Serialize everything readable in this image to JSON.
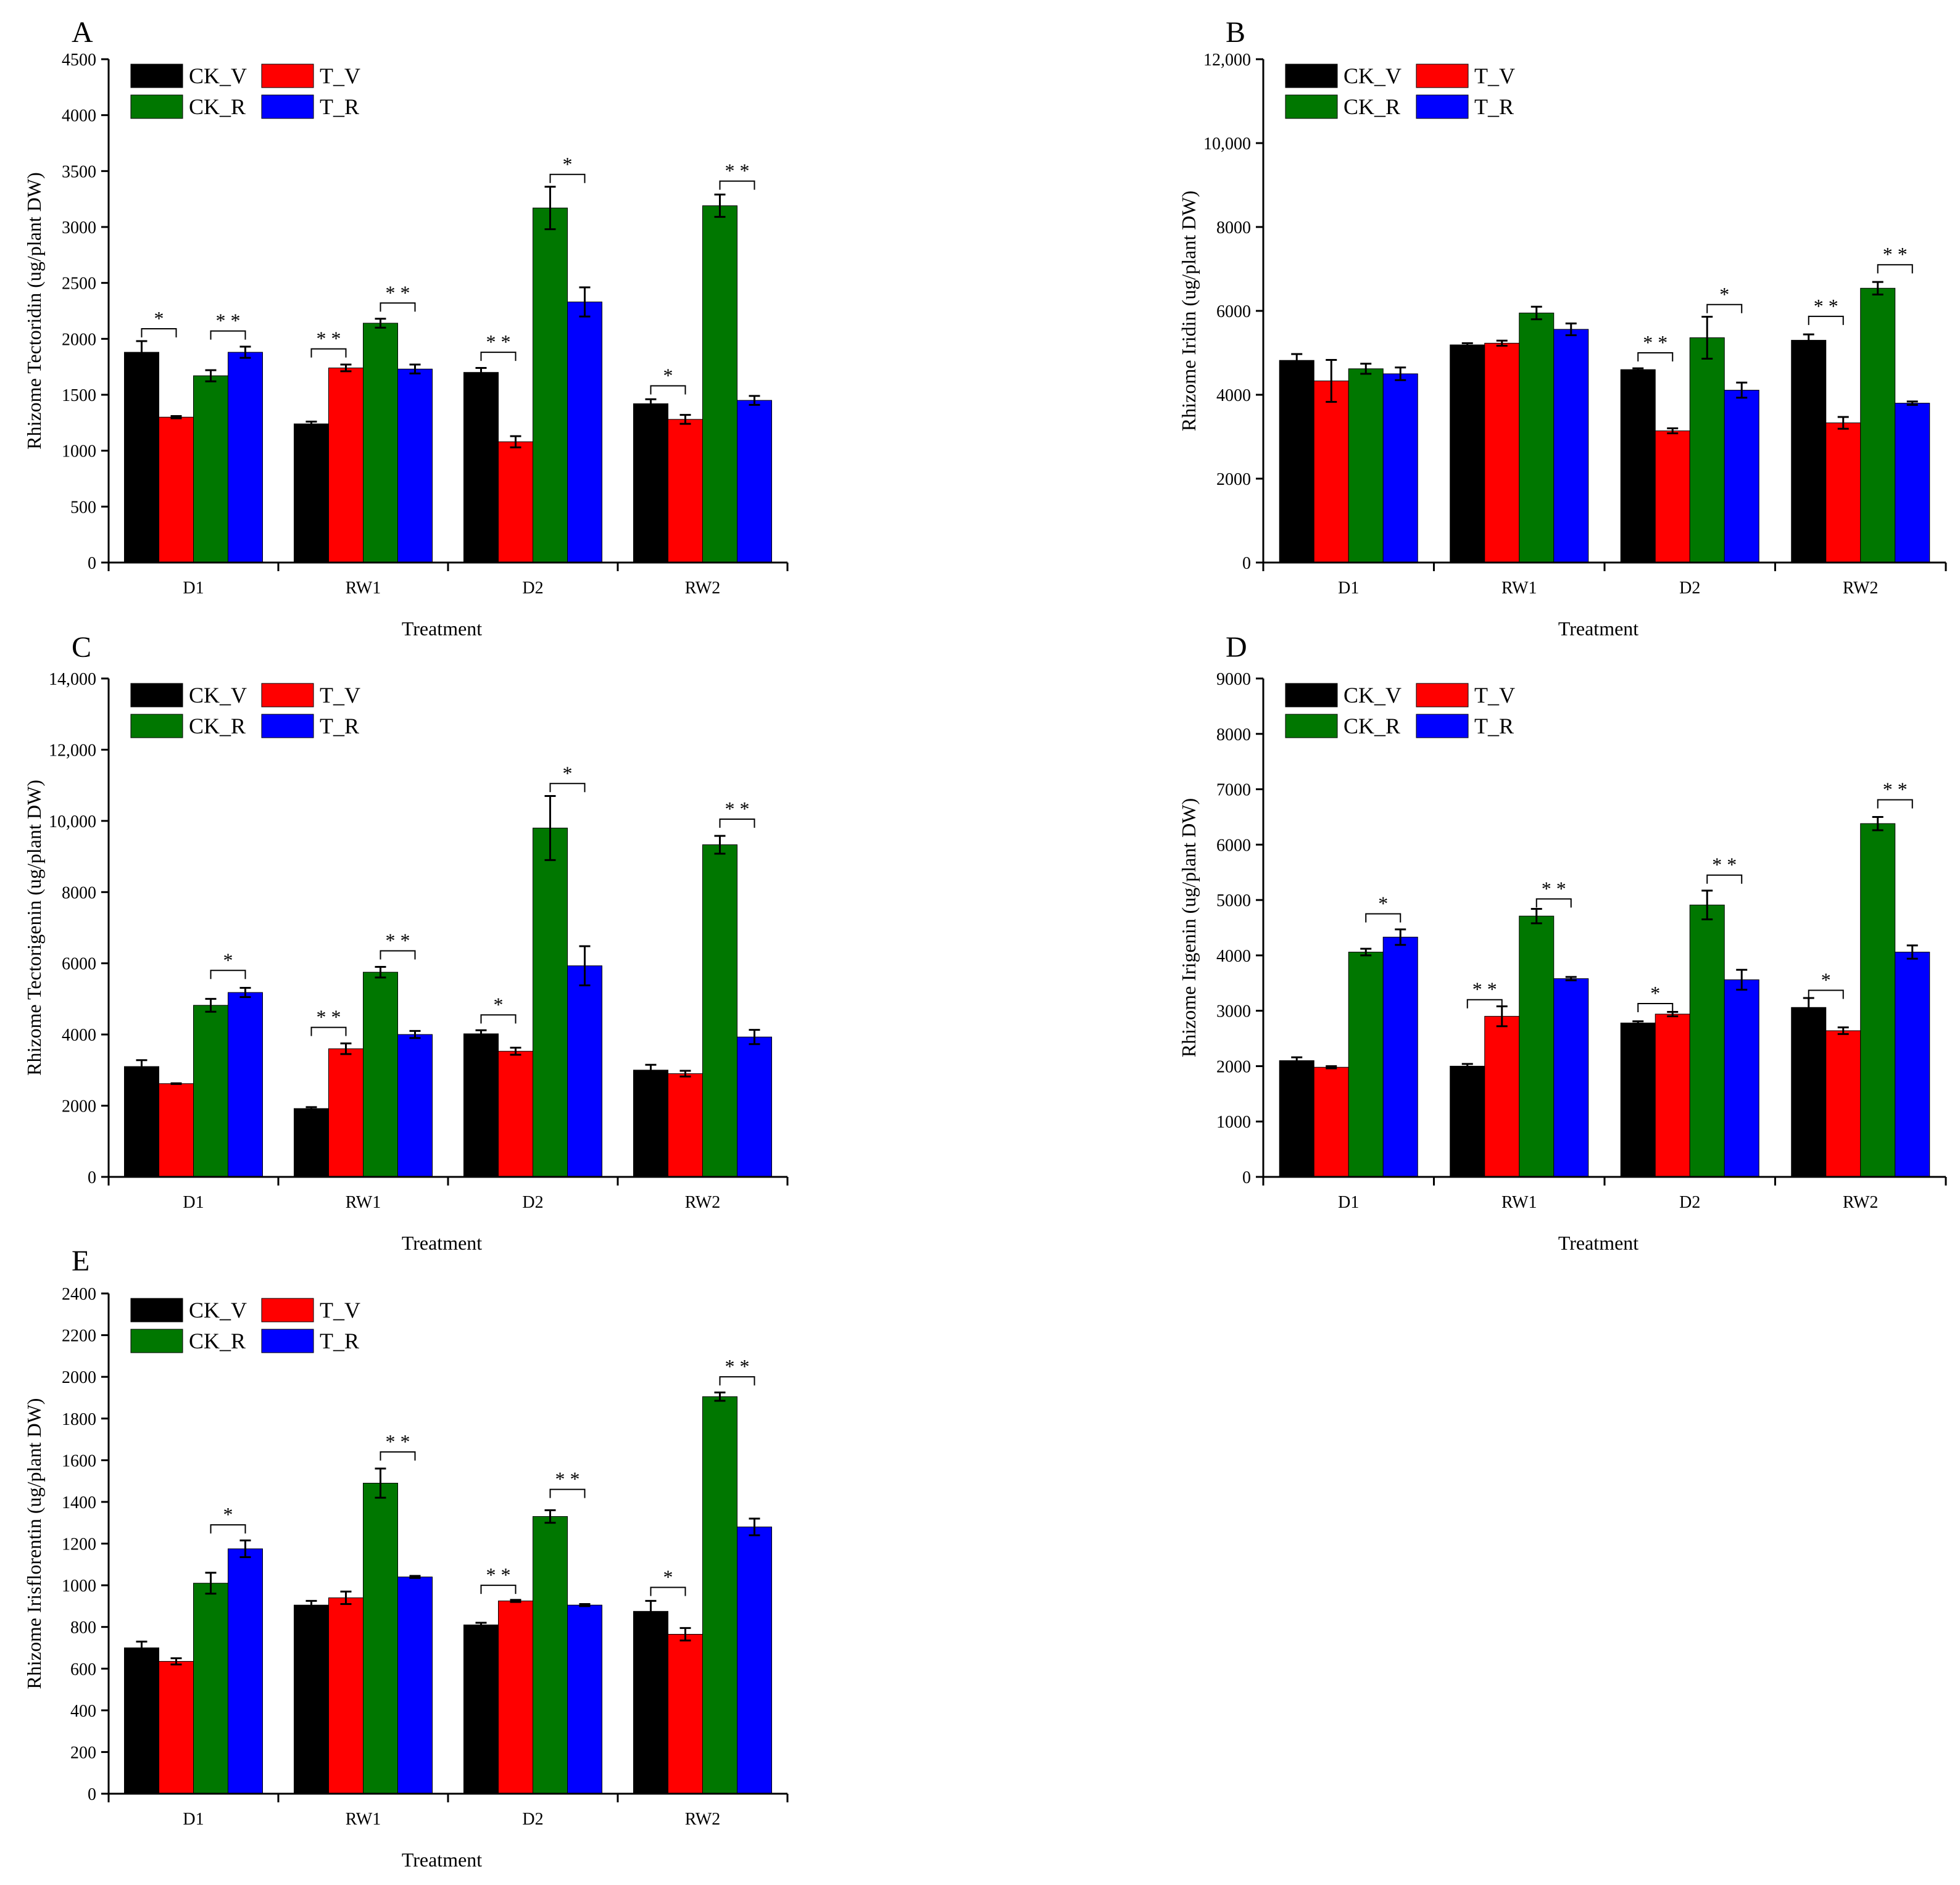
{
  "series_names": [
    "CK_V",
    "T_V",
    "CK_R",
    "T_R"
  ],
  "series_colors": [
    "#000000",
    "#ff0000",
    "#007700",
    "#0000ff"
  ],
  "chart_data": [
    {
      "panel": "A",
      "type": "bar",
      "ylabel": "Rhizome Tectoridin (ug/plant DW)",
      "xlabel": "Treatment",
      "categories": [
        "D1",
        "RW1",
        "D2",
        "RW2"
      ],
      "ylim": [
        0,
        4500
      ],
      "yticks": [
        0,
        500,
        1000,
        1500,
        2000,
        2500,
        3000,
        3500,
        4000,
        4500
      ],
      "ytick_labels": [
        "0",
        "500",
        "1000",
        "1500",
        "2000",
        "2500",
        "3000",
        "3500",
        "4000",
        "4500"
      ],
      "series": [
        {
          "name": "CK_V",
          "values": [
            1880,
            1240,
            1700,
            1420
          ],
          "errors": [
            100,
            20,
            40,
            40
          ]
        },
        {
          "name": "T_V",
          "values": [
            1300,
            1740,
            1080,
            1280
          ],
          "errors": [
            10,
            30,
            50,
            40
          ]
        },
        {
          "name": "CK_R",
          "values": [
            1670,
            2140,
            3170,
            3190
          ],
          "errors": [
            50,
            40,
            190,
            100
          ]
        },
        {
          "name": "T_R",
          "values": [
            1880,
            1730,
            2330,
            1450
          ],
          "errors": [
            50,
            40,
            130,
            40
          ]
        }
      ],
      "significance": [
        {
          "category": 0,
          "pair": [
            0,
            1
          ],
          "label": "*",
          "y": 2090
        },
        {
          "category": 0,
          "pair": [
            2,
            3
          ],
          "label": "* *",
          "y": 2070
        },
        {
          "category": 1,
          "pair": [
            0,
            1
          ],
          "label": "* *",
          "y": 1910
        },
        {
          "category": 1,
          "pair": [
            2,
            3
          ],
          "label": "* *",
          "y": 2320
        },
        {
          "category": 2,
          "pair": [
            0,
            1
          ],
          "label": "* *",
          "y": 1880
        },
        {
          "category": 2,
          "pair": [
            2,
            3
          ],
          "label": "*",
          "y": 3470
        },
        {
          "category": 3,
          "pair": [
            0,
            1
          ],
          "label": "*",
          "y": 1580
        },
        {
          "category": 3,
          "pair": [
            2,
            3
          ],
          "label": "* *",
          "y": 3410
        }
      ]
    },
    {
      "panel": "B",
      "type": "bar",
      "ylabel": "Rhizome Iridin (ug/plant DW)",
      "xlabel": "Treatment",
      "categories": [
        "D1",
        "RW1",
        "D2",
        "RW2"
      ],
      "ylim": [
        0,
        12000
      ],
      "yticks": [
        0,
        2000,
        4000,
        6000,
        8000,
        10000,
        12000
      ],
      "ytick_labels": [
        "0",
        "2000",
        "4000",
        "6000",
        "8000",
        "10,000",
        "12,000"
      ],
      "series": [
        {
          "name": "CK_V",
          "values": [
            4820,
            5190,
            4600,
            5300
          ],
          "errors": [
            150,
            40,
            30,
            140
          ]
        },
        {
          "name": "T_V",
          "values": [
            4330,
            5230,
            3140,
            3330
          ],
          "errors": [
            500,
            60,
            60,
            140
          ]
        },
        {
          "name": "CK_R",
          "values": [
            4620,
            5950,
            5360,
            6540
          ],
          "errors": [
            120,
            150,
            500,
            150
          ]
        },
        {
          "name": "T_R",
          "values": [
            4500,
            5560,
            4110,
            3800
          ],
          "errors": [
            150,
            140,
            180,
            40
          ]
        }
      ],
      "significance": [
        {
          "category": 2,
          "pair": [
            0,
            1
          ],
          "label": "* *",
          "y": 5000
        },
        {
          "category": 2,
          "pair": [
            2,
            3
          ],
          "label": "*",
          "y": 6150
        },
        {
          "category": 3,
          "pair": [
            0,
            1
          ],
          "label": "* *",
          "y": 5870
        },
        {
          "category": 3,
          "pair": [
            2,
            3
          ],
          "label": "* *",
          "y": 7100
        }
      ]
    },
    {
      "panel": "C",
      "type": "bar",
      "ylabel": "Rhizome Tectorigenin (ug/plant DW)",
      "xlabel": "Treatment",
      "categories": [
        "D1",
        "RW1",
        "D2",
        "RW2"
      ],
      "ylim": [
        0,
        14000
      ],
      "yticks": [
        0,
        2000,
        4000,
        6000,
        8000,
        10000,
        12000,
        14000
      ],
      "ytick_labels": [
        "0",
        "2000",
        "4000",
        "6000",
        "8000",
        "10,000",
        "12,000",
        "14,000"
      ],
      "series": [
        {
          "name": "CK_V",
          "values": [
            3100,
            1920,
            4020,
            3000
          ],
          "errors": [
            180,
            40,
            100,
            150
          ]
        },
        {
          "name": "T_V",
          "values": [
            2620,
            3600,
            3530,
            2900
          ],
          "errors": [
            10,
            150,
            100,
            80
          ]
        },
        {
          "name": "CK_R",
          "values": [
            4820,
            5750,
            9800,
            9330
          ],
          "errors": [
            180,
            150,
            900,
            250
          ]
        },
        {
          "name": "T_R",
          "values": [
            5180,
            4000,
            5930,
            3930
          ],
          "errors": [
            130,
            100,
            550,
            200
          ]
        }
      ],
      "significance": [
        {
          "category": 0,
          "pair": [
            2,
            3
          ],
          "label": "*",
          "y": 5800
        },
        {
          "category": 1,
          "pair": [
            0,
            1
          ],
          "label": "* *",
          "y": 4200
        },
        {
          "category": 1,
          "pair": [
            2,
            3
          ],
          "label": "* *",
          "y": 6350
        },
        {
          "category": 2,
          "pair": [
            0,
            1
          ],
          "label": "*",
          "y": 4550
        },
        {
          "category": 2,
          "pair": [
            2,
            3
          ],
          "label": "*",
          "y": 11050
        },
        {
          "category": 3,
          "pair": [
            2,
            3
          ],
          "label": "* *",
          "y": 10050
        }
      ]
    },
    {
      "panel": "D",
      "type": "bar",
      "ylabel": "Rhizome Irigenin (ug/plant DW)",
      "xlabel": "Treatment",
      "categories": [
        "D1",
        "RW1",
        "D2",
        "RW2"
      ],
      "ylim": [
        0,
        9000
      ],
      "yticks": [
        0,
        1000,
        2000,
        3000,
        4000,
        5000,
        6000,
        7000,
        8000,
        9000
      ],
      "ytick_labels": [
        "0",
        "1000",
        "2000",
        "3000",
        "4000",
        "5000",
        "6000",
        "7000",
        "8000",
        "9000"
      ],
      "series": [
        {
          "name": "CK_V",
          "values": [
            2100,
            2000,
            2780,
            3060
          ],
          "errors": [
            60,
            40,
            30,
            170
          ]
        },
        {
          "name": "T_V",
          "values": [
            1980,
            2900,
            2940,
            2640
          ],
          "errors": [
            20,
            180,
            40,
            60
          ]
        },
        {
          "name": "CK_R",
          "values": [
            4060,
            4710,
            4910,
            6380
          ],
          "errors": [
            60,
            130,
            260,
            120
          ]
        },
        {
          "name": "T_R",
          "values": [
            4330,
            3580,
            3560,
            4060
          ],
          "errors": [
            140,
            30,
            180,
            120
          ]
        }
      ],
      "significance": [
        {
          "category": 0,
          "pair": [
            2,
            3
          ],
          "label": "*",
          "y": 4750
        },
        {
          "category": 1,
          "pair": [
            0,
            1
          ],
          "label": "* *",
          "y": 3200
        },
        {
          "category": 1,
          "pair": [
            2,
            3
          ],
          "label": "* *",
          "y": 5020
        },
        {
          "category": 2,
          "pair": [
            0,
            1
          ],
          "label": "*",
          "y": 3130
        },
        {
          "category": 2,
          "pair": [
            2,
            3
          ],
          "label": "* *",
          "y": 5450
        },
        {
          "category": 3,
          "pair": [
            0,
            1
          ],
          "label": "*",
          "y": 3370
        },
        {
          "category": 3,
          "pair": [
            2,
            3
          ],
          "label": "* *",
          "y": 6810
        }
      ]
    },
    {
      "panel": "E",
      "type": "bar",
      "ylabel": "Rhizome Irisflorentin (ug/plant DW)",
      "xlabel": "Treatment",
      "categories": [
        "D1",
        "RW1",
        "D2",
        "RW2"
      ],
      "ylim": [
        0,
        2400
      ],
      "yticks": [
        0,
        200,
        400,
        600,
        800,
        1000,
        1200,
        1400,
        1600,
        1800,
        2000,
        2200,
        2400
      ],
      "ytick_labels": [
        "0",
        "200",
        "400",
        "600",
        "800",
        "1000",
        "1200",
        "1400",
        "1600",
        "1800",
        "2000",
        "2200",
        "2400"
      ],
      "series": [
        {
          "name": "CK_V",
          "values": [
            700,
            905,
            810,
            875
          ],
          "errors": [
            30,
            20,
            10,
            50
          ]
        },
        {
          "name": "T_V",
          "values": [
            635,
            940,
            925,
            765
          ],
          "errors": [
            15,
            30,
            5,
            30
          ]
        },
        {
          "name": "CK_R",
          "values": [
            1010,
            1490,
            1330,
            1905
          ],
          "errors": [
            50,
            70,
            30,
            20
          ]
        },
        {
          "name": "T_R",
          "values": [
            1175,
            1040,
            905,
            1280
          ],
          "errors": [
            40,
            5,
            5,
            40
          ]
        }
      ],
      "significance": [
        {
          "category": 0,
          "pair": [
            2,
            3
          ],
          "label": "*",
          "y": 1290
        },
        {
          "category": 1,
          "pair": [
            2,
            3
          ],
          "label": "* *",
          "y": 1640
        },
        {
          "category": 2,
          "pair": [
            0,
            1
          ],
          "label": "* *",
          "y": 1000
        },
        {
          "category": 2,
          "pair": [
            2,
            3
          ],
          "label": "* *",
          "y": 1460
        },
        {
          "category": 3,
          "pair": [
            0,
            1
          ],
          "label": "*",
          "y": 990
        },
        {
          "category": 3,
          "pair": [
            2,
            3
          ],
          "label": "* *",
          "y": 2000
        }
      ]
    }
  ]
}
